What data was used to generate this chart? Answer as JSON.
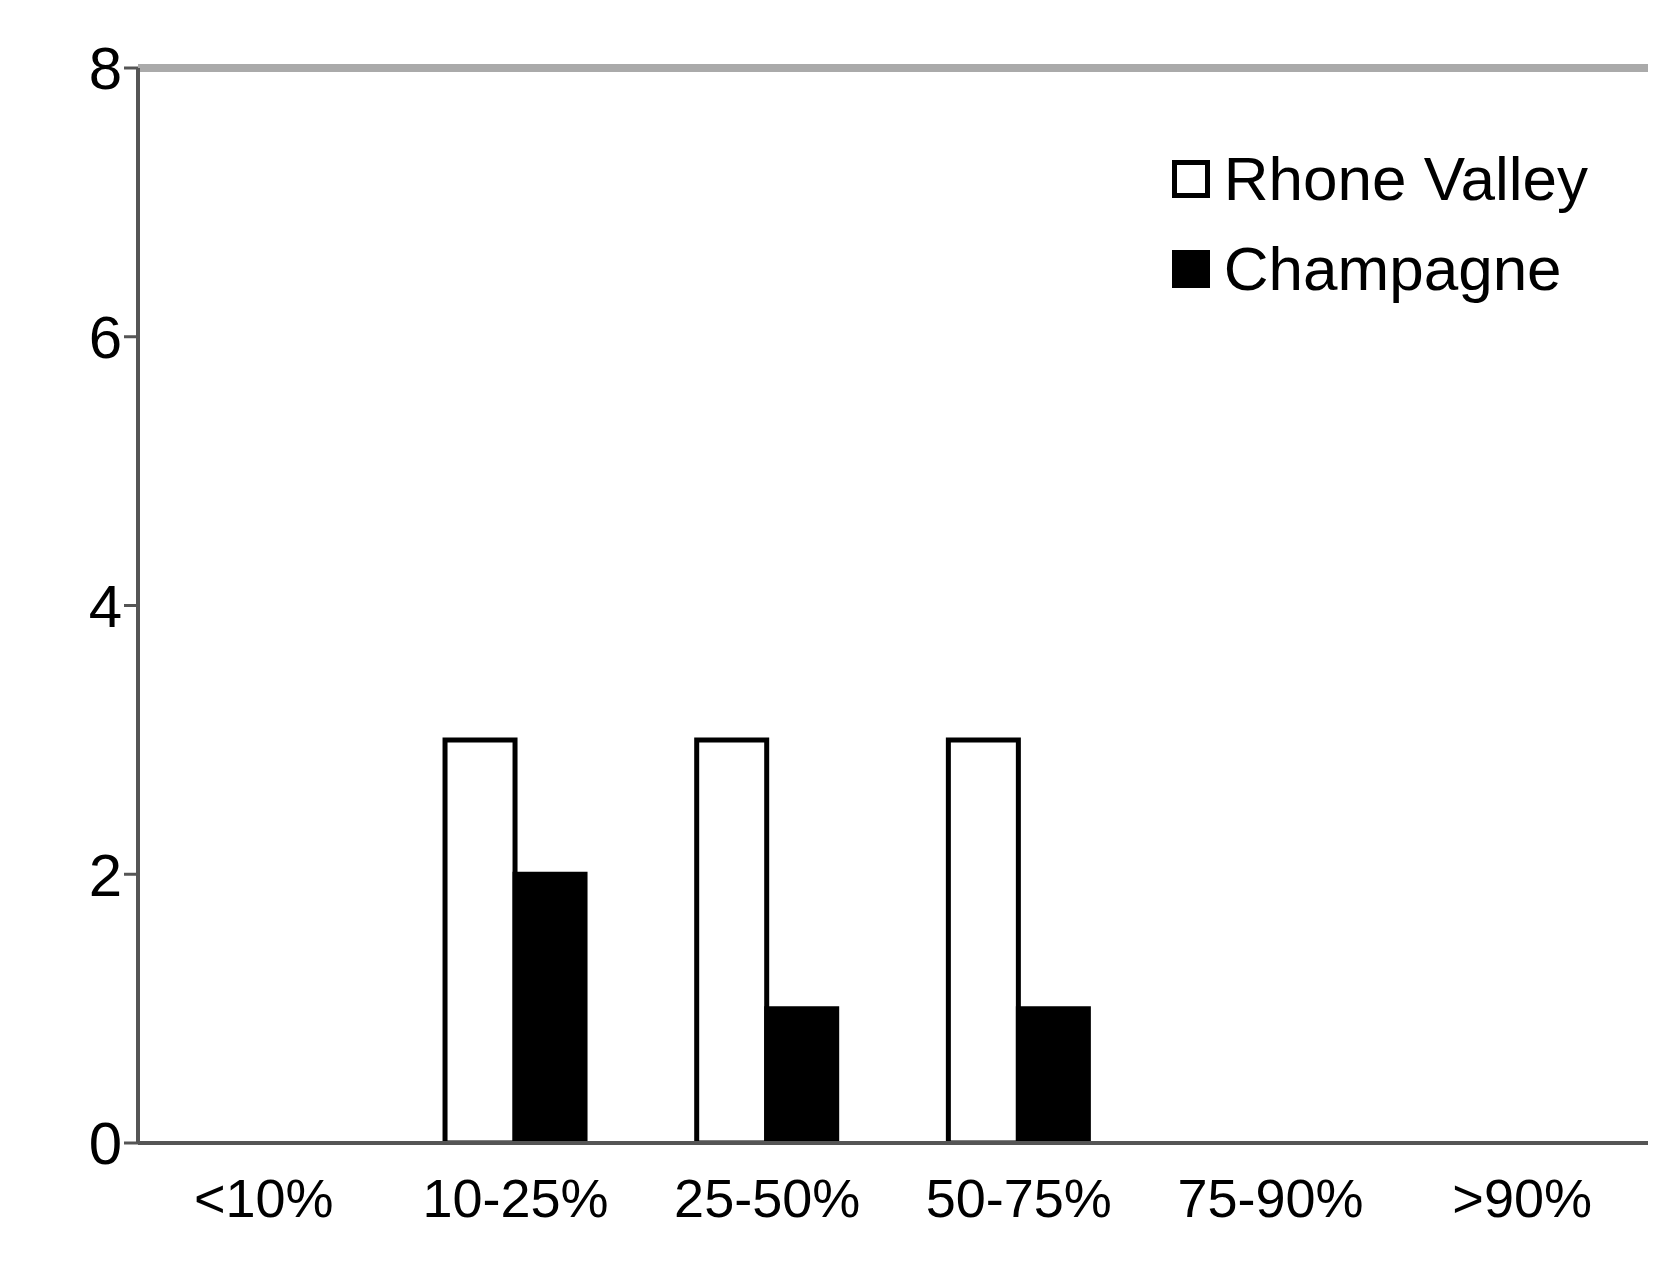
{
  "chart_data": {
    "type": "bar",
    "categories": [
      "<10%",
      "10-25%",
      "25-50%",
      "50-75%",
      "75-90%",
      ">90%"
    ],
    "series": [
      {
        "name": "Rhone Valley",
        "color": "#ffffff",
        "values": [
          0,
          3,
          3,
          3,
          0,
          0
        ]
      },
      {
        "name": "Champagne",
        "color": "#000000",
        "values": [
          0,
          2,
          1,
          1,
          0,
          0
        ]
      }
    ],
    "ylim": [
      0,
      8
    ],
    "yticks": [
      0,
      2,
      4,
      6,
      8
    ],
    "grid": false,
    "legend": "top right"
  }
}
